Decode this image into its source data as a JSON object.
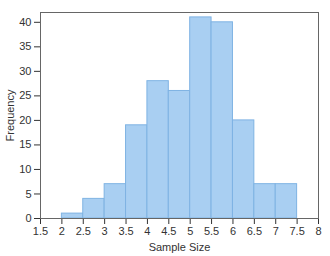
{
  "chart_data": {
    "type": "histogram",
    "bins": [
      2,
      2.5,
      3,
      3.5,
      4,
      4.5,
      5,
      5.5,
      6,
      6.5,
      7,
      7.5
    ],
    "values": [
      1,
      4,
      7,
      19,
      28,
      26,
      41,
      40,
      20,
      7,
      7
    ],
    "color": "#a9cff2",
    "x_label": "Sample Size",
    "y_label": "Frequency",
    "xlim": [
      1.5,
      8
    ],
    "xticks": [
      1.5,
      2,
      2.5,
      3,
      3.5,
      4,
      4.5,
      5,
      5.5,
      6,
      6.5,
      7,
      7.5,
      8
    ],
    "ylim": [
      0,
      42
    ],
    "yticks": [
      0,
      5,
      10,
      15,
      20,
      25,
      30,
      35,
      40
    ],
    "grid": false
  }
}
